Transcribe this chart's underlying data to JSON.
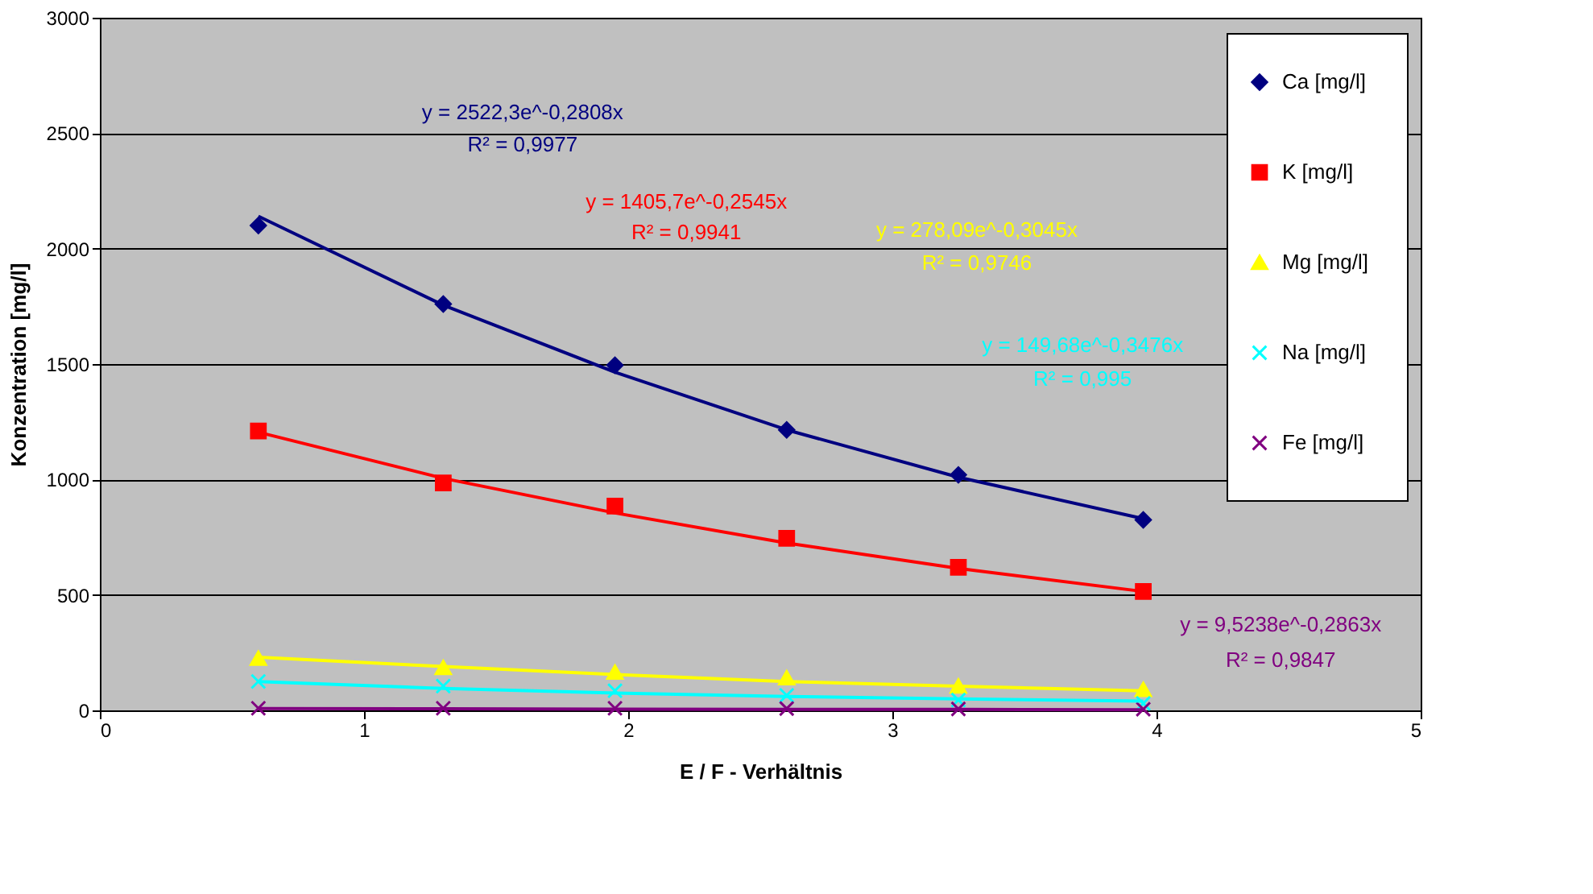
{
  "chart_data": {
    "type": "scatter",
    "xlabel": "E / F - Verhältnis",
    "ylabel": "Konzentration [mg/l]",
    "x": [
      0.6,
      1.3,
      1.95,
      2.6,
      3.25,
      3.95
    ],
    "series": [
      {
        "name": "Ca [mg/l]",
        "color": "#000080",
        "marker": "diamond",
        "values": [
          2100,
          1760,
          1495,
          1215,
          1020,
          825
        ]
      },
      {
        "name": "K [mg/l]",
        "color": "#ff0000",
        "marker": "square",
        "values": [
          1210,
          985,
          885,
          745,
          620,
          515
        ]
      },
      {
        "name": "Mg [mg/l]",
        "color": "#ffff00",
        "marker": "triangle",
        "values": [
          225,
          185,
          165,
          140,
          105,
          90
        ]
      },
      {
        "name": "Na [mg/l]",
        "color": "#00ffff",
        "marker": "cross",
        "values": [
          125,
          105,
          85,
          65,
          45,
          30
        ]
      },
      {
        "name": "Fe [mg/l]",
        "color": "#800080",
        "marker": "cross",
        "values": [
          9,
          9,
          9,
          8,
          6,
          5
        ]
      },
      {
        "type": "line",
        "color": "#000080",
        "marker": "none",
        "x": [
          0.6,
          1.3,
          1.95,
          2.6,
          3.25,
          3.95
        ],
        "values": [
          2140,
          1755,
          1465,
          1215,
          1010,
          830
        ]
      },
      {
        "type": "line",
        "color": "#ff0000",
        "marker": "none",
        "x": [
          0.6,
          1.3,
          1.95,
          2.6,
          3.25,
          3.95
        ],
        "values": [
          1205,
          1005,
          855,
          725,
          615,
          515
        ]
      },
      {
        "type": "line",
        "color": "#ffff00",
        "marker": "none",
        "x": [
          0.6,
          1.3,
          1.95,
          2.6,
          3.25,
          3.95
        ],
        "values": [
          230,
          190,
          155,
          125,
          105,
          85
        ]
      },
      {
        "type": "line",
        "color": "#00ffff",
        "marker": "none",
        "x": [
          0.6,
          1.3,
          1.95,
          2.6,
          3.25,
          3.95
        ],
        "values": [
          125,
          95,
          75,
          60,
          50,
          40
        ]
      },
      {
        "type": "line",
        "color": "#800080",
        "marker": "none",
        "x": [
          0.6,
          1.3,
          1.95,
          2.6,
          3.25,
          3.95
        ],
        "values": [
          8,
          7,
          5,
          4,
          4,
          3
        ]
      }
    ],
    "annotations": [
      "y = 2522,3e^-0,2808x",
      "R² = 0,9977",
      "y = 1405,7e^-0,2545x",
      "R² = 0,9941",
      "y = 278,09e^-0,3045x",
      "R² = 0,9746",
      "y = 149,68e^-0,3476x",
      "R² = 0,995",
      "y = 9,5238e^-0,2863x",
      "R² = 0,9847"
    ],
    "xlim": [
      0,
      5
    ],
    "xticks": [
      0,
      1,
      2,
      3,
      4,
      5
    ],
    "ylim": [
      0,
      3000
    ],
    "yticks": [
      0,
      500,
      1000,
      1500,
      2000,
      2500,
      3000
    ],
    "grid": "y",
    "legend": "top right"
  }
}
